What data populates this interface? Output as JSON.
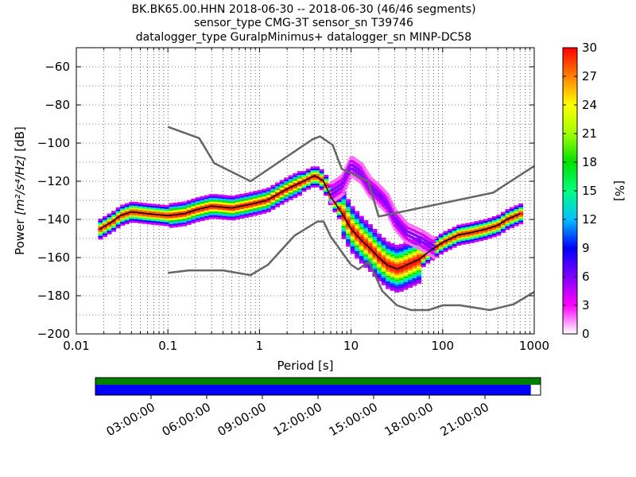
{
  "title_lines": [
    "BK.BK65.00.HHN   2018-06-30 -- 2018-06-30  (46/46 segments)",
    "sensor_type CMG-3T sensor_sn T39746",
    "datalogger_type GuralpMinimus+ datalogger_sn MINP-DC58"
  ],
  "chart_data": {
    "type": "heatmap",
    "xlabel": "Period [s]",
    "ylabel_prefix": "Power ",
    "ylabel_math": "[m²/s⁴/Hz]",
    "ylabel_suffix": " [dB]",
    "xscale": "log",
    "xlim": [
      0.01,
      1000
    ],
    "ylim": [
      -200,
      -50
    ],
    "xticks": [
      {
        "v": 0.01,
        "label": "0.01"
      },
      {
        "v": 0.1,
        "label": "0.1"
      },
      {
        "v": 1,
        "label": "1"
      },
      {
        "v": 10,
        "label": "10"
      },
      {
        "v": 100,
        "label": "100"
      },
      {
        "v": 1000,
        "label": "1000"
      }
    ],
    "yticks": [
      {
        "v": -60,
        "label": "−60"
      },
      {
        "v": -80,
        "label": "−80"
      },
      {
        "v": -100,
        "label": "−100"
      },
      {
        "v": -120,
        "label": "−120"
      },
      {
        "v": -140,
        "label": "−140"
      },
      {
        "v": -160,
        "label": "−160"
      },
      {
        "v": -180,
        "label": "−180"
      },
      {
        "v": -200,
        "label": "−200"
      }
    ],
    "grid": true,
    "colorbar": {
      "label": "[%]",
      "range": [
        0,
        30
      ],
      "ticks": [
        {
          "v": 0,
          "label": "0"
        },
        {
          "v": 3,
          "label": "3"
        },
        {
          "v": 6,
          "label": "6"
        },
        {
          "v": 9,
          "label": "9"
        },
        {
          "v": 12,
          "label": "12"
        },
        {
          "v": 15,
          "label": "15"
        },
        {
          "v": 18,
          "label": "18"
        },
        {
          "v": 21,
          "label": "21"
        },
        {
          "v": 24,
          "label": "24"
        },
        {
          "v": 27,
          "label": "27"
        },
        {
          "v": 30,
          "label": "30"
        }
      ],
      "colors": [
        "#ffffff",
        "#ff00ff",
        "#8000ff",
        "#0000ff",
        "#00c0ff",
        "#00ff80",
        "#00e000",
        "#a0ff00",
        "#ffff00",
        "#ff8000",
        "#ff0000"
      ]
    },
    "nhnm": {
      "x": [
        0.1,
        0.22,
        0.32,
        0.8,
        3.8,
        4.6,
        6.3,
        7.9,
        15.4,
        20,
        354.8,
        1000
      ],
      "y": [
        -91.5,
        -97.4,
        -110.5,
        -120,
        -98,
        -96.5,
        -101,
        -113.5,
        -120,
        -138.5,
        -126,
        -112
      ]
    },
    "nlnm": {
      "x": [
        0.1,
        0.17,
        0.4,
        0.8,
        1.24,
        2.4,
        4.3,
        5,
        6,
        10,
        12,
        15.6,
        21.9,
        31.6,
        45,
        70,
        101,
        154,
        328,
        600,
        1000
      ],
      "y": [
        -168,
        -166.7,
        -166.7,
        -169.2,
        -163.7,
        -148.6,
        -141.1,
        -141.1,
        -149,
        -163.8,
        -166.2,
        -162.1,
        -177.5,
        -185,
        -187.5,
        -187.5,
        -185,
        -185,
        -187.5,
        -184.4,
        -178
      ]
    },
    "mode": {
      "x": [
        0.018,
        0.025,
        0.03,
        0.04,
        0.06,
        0.1,
        0.15,
        0.2,
        0.3,
        0.5,
        0.8,
        1.2,
        2,
        3,
        4,
        5,
        6,
        8,
        10,
        13,
        16,
        20,
        25,
        32,
        40,
        55,
        70,
        100,
        150,
        200,
        300,
        400,
        500,
        700
      ],
      "y": [
        -145,
        -141,
        -138,
        -136,
        -137,
        -138,
        -137,
        -135,
        -133,
        -134,
        -132,
        -130,
        -124,
        -120,
        -117,
        -120,
        -128,
        -137,
        -145,
        -151,
        -155,
        -160,
        -164,
        -166,
        -164,
        -161,
        -157,
        -152,
        -148,
        -147,
        -145,
        -143,
        -140,
        -137
      ]
    },
    "coverage_times": [
      "03:00:00",
      "06:00:00",
      "09:00:00",
      "12:00:00",
      "15:00:00",
      "18:00:00",
      "21:00:00"
    ],
    "coverage_fraction": 0.978,
    "data_bar_color": "#0000ff",
    "coverage_bar_color": "#008000",
    "nm_line_color": "#666666"
  }
}
